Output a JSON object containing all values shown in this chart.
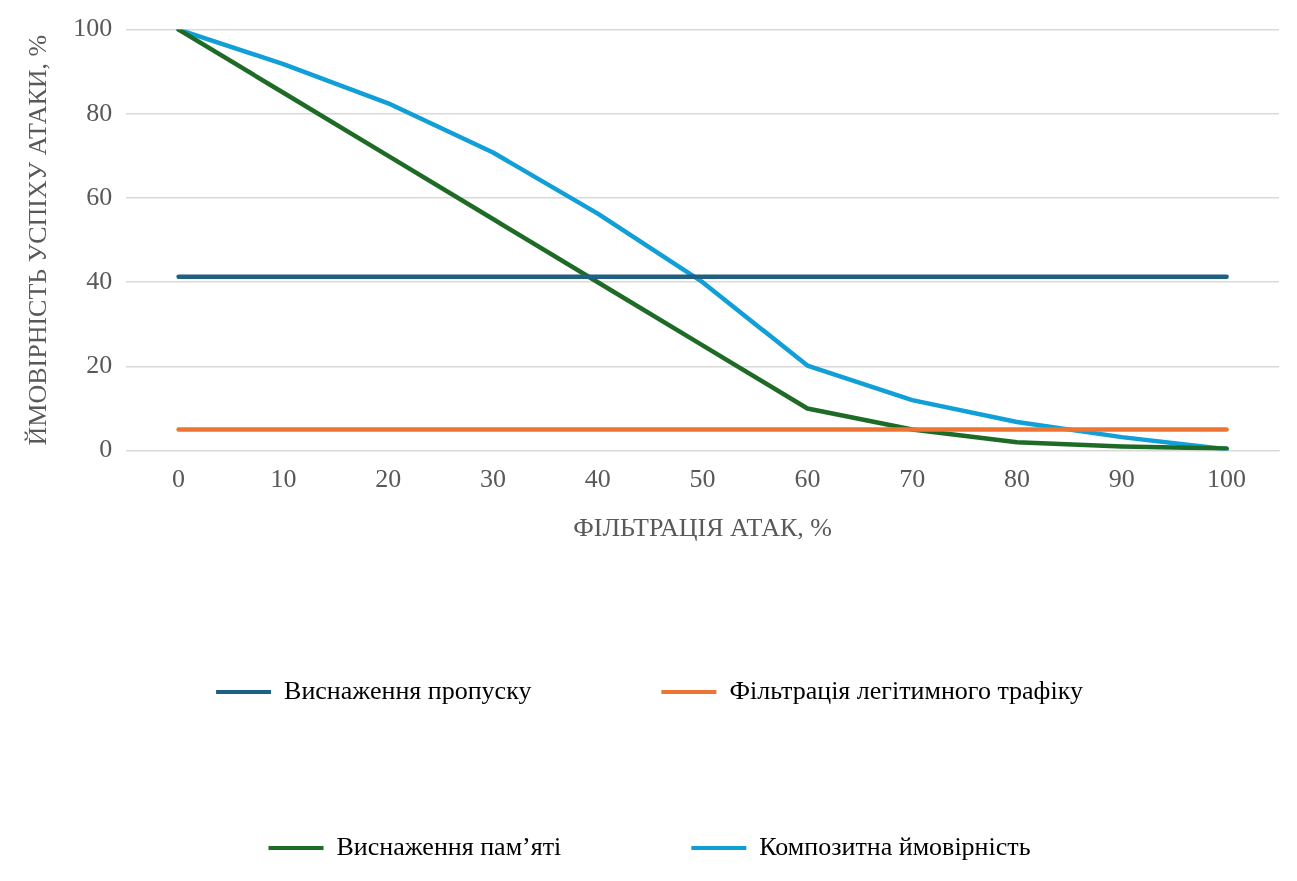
{
  "chart_data": {
    "type": "line",
    "xlabel": "ФІЛЬТРАЦІЯ АТАК, %",
    "ylabel": "ЙМОВІРНІСТЬ УСПІХУ АТАКИ, %",
    "categories": [
      "0",
      "10",
      "20",
      "30",
      "40",
      "50",
      "60",
      "70",
      "80",
      "90",
      "100"
    ],
    "series": [
      {
        "name": "Виснаження пропуску",
        "color": "#1f5f82",
        "values": [
          41.3,
          41.3,
          41.3,
          41.3,
          41.3,
          41.3,
          41.3,
          41.3,
          41.3,
          41.3,
          41.3
        ]
      },
      {
        "name": "Фільтрація легітимного трафіку",
        "color": "#ed7432",
        "values": [
          5,
          5,
          5,
          5,
          5,
          5,
          5,
          5,
          5,
          5,
          5
        ]
      },
      {
        "name": "Виснаження пам’яті",
        "color": "#1e6b26",
        "values": [
          100,
          85,
          70,
          55,
          40,
          25,
          10,
          5,
          2,
          1,
          0.5
        ]
      },
      {
        "name": "Композитна ймовірність",
        "color": "#119fd8",
        "values": [
          100,
          91.8,
          82.5,
          70.8,
          56.3,
          40,
          20.2,
          12,
          6.8,
          3.2,
          0.3
        ]
      }
    ],
    "ylim": [
      0,
      100
    ],
    "yticks": [
      0,
      20,
      40,
      60,
      80,
      100
    ],
    "grid": "y",
    "legend": "bottom",
    "marker": "none",
    "line_style": "solid"
  }
}
